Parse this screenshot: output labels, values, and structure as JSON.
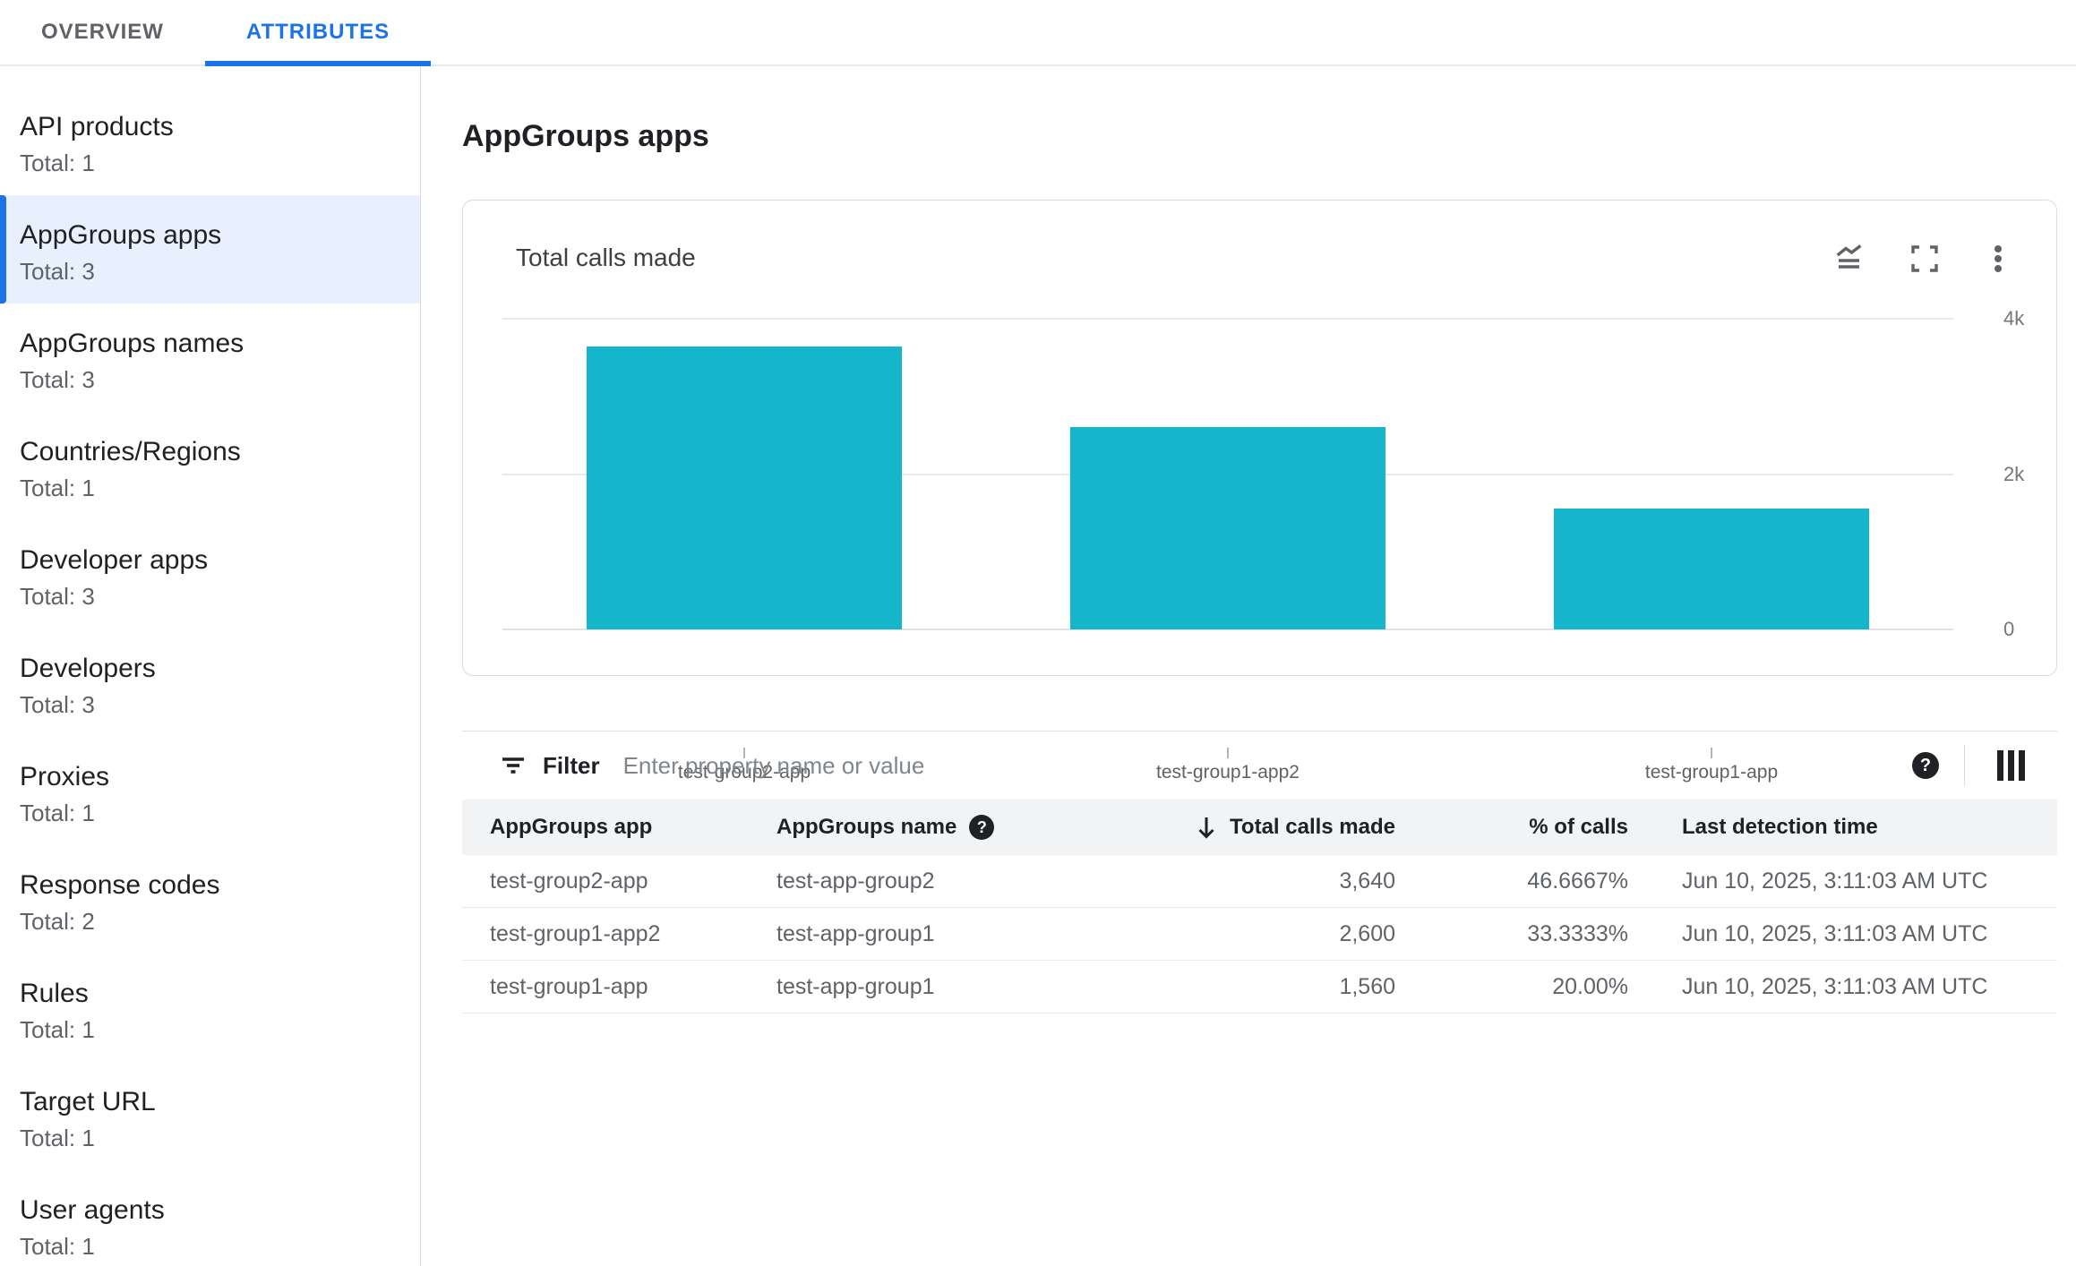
{
  "tabs": [
    {
      "label": "OVERVIEW",
      "active": false
    },
    {
      "label": "ATTRIBUTES",
      "active": true
    }
  ],
  "sidebar": {
    "selected_index": 1,
    "items": [
      {
        "label": "API products",
        "total": "Total: 1"
      },
      {
        "label": "AppGroups apps",
        "total": "Total: 3"
      },
      {
        "label": "AppGroups names",
        "total": "Total: 3"
      },
      {
        "label": "Countries/Regions",
        "total": "Total: 1"
      },
      {
        "label": "Developer apps",
        "total": "Total: 3"
      },
      {
        "label": "Developers",
        "total": "Total: 3"
      },
      {
        "label": "Proxies",
        "total": "Total: 1"
      },
      {
        "label": "Response codes",
        "total": "Total: 2"
      },
      {
        "label": "Rules",
        "total": "Total: 1"
      },
      {
        "label": "Target URL",
        "total": "Total: 1"
      },
      {
        "label": "User agents",
        "total": "Total: 1"
      }
    ]
  },
  "main": {
    "title": "AppGroups apps"
  },
  "card": {
    "title": "Total calls made",
    "icons": [
      "chart-type",
      "fullscreen",
      "more-vert"
    ]
  },
  "chart_data": {
    "type": "bar",
    "title": "Total calls made",
    "categories": [
      "test-group2-app",
      "test-group1-app2",
      "test-group1-app"
    ],
    "values": [
      3640,
      2600,
      1560
    ],
    "ylim": [
      0,
      4000
    ],
    "yticks": [
      {
        "value": 0,
        "label": "0"
      },
      {
        "value": 2000,
        "label": "2k"
      },
      {
        "value": 4000,
        "label": "4k"
      }
    ],
    "bar_color": "#15b5cb",
    "grid": true,
    "y_axis_position": "right",
    "legend": "none"
  },
  "filter": {
    "label": "Filter",
    "placeholder": "Enter property name or value",
    "value": ""
  },
  "table": {
    "columns": [
      "AppGroups app",
      "AppGroups name",
      "Total calls made",
      "% of calls",
      "Last detection time"
    ],
    "sort": {
      "column": "Total calls made",
      "direction": "desc"
    },
    "rows": [
      {
        "app": "test-group2-app",
        "name": "test-app-group2",
        "calls": "3,640",
        "pct": "46.6667%",
        "time": "Jun 10, 2025, 3:11:03 AM UTC"
      },
      {
        "app": "test-group1-app2",
        "name": "test-app-group1",
        "calls": "2,600",
        "pct": "33.3333%",
        "time": "Jun 10, 2025, 3:11:03 AM UTC"
      },
      {
        "app": "test-group1-app",
        "name": "test-app-group1",
        "calls": "1,560",
        "pct": "20.00%",
        "time": "Jun 10, 2025, 3:11:03 AM UTC"
      }
    ]
  }
}
